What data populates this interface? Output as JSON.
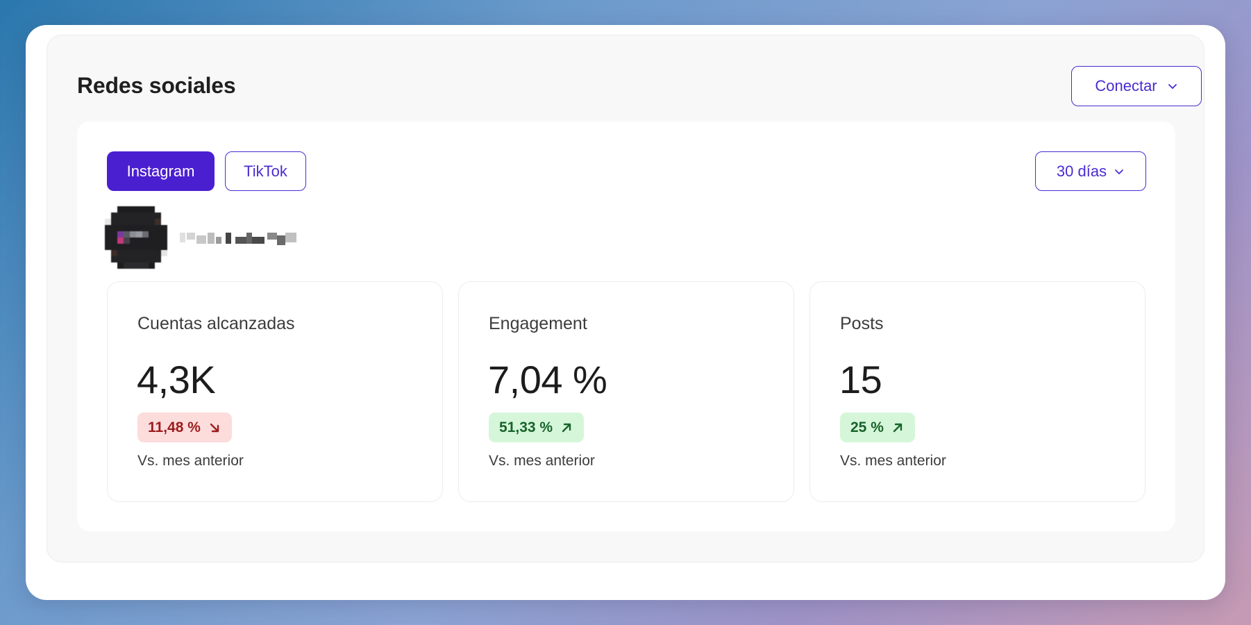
{
  "panel": {
    "title": "Redes sociales",
    "connect_label": "Conectar"
  },
  "tabs": [
    {
      "label": "Instagram",
      "active": true
    },
    {
      "label": "TikTok",
      "active": false
    }
  ],
  "range": {
    "label": "30 días"
  },
  "metrics": [
    {
      "label": "Cuentas alcanzadas",
      "value": "4,3K",
      "change": "11,48 %",
      "trend": "down",
      "comparison": "Vs. mes anterior"
    },
    {
      "label": "Engagement",
      "value": "7,04 %",
      "change": "51,33 %",
      "trend": "up",
      "comparison": "Vs. mes anterior"
    },
    {
      "label": "Posts",
      "value": "15",
      "change": "25 %",
      "trend": "up",
      "comparison": "Vs. mes anterior"
    }
  ],
  "colors": {
    "accent": "#4a1fd0",
    "down_bg": "#fddcdc",
    "down_text": "#9b1d1d",
    "up_bg": "#d6f6da",
    "up_text": "#18632a"
  },
  "icons": {
    "dropdown": "chevron-down-icon",
    "trend_down": "arrow-down-right-icon",
    "trend_up": "arrow-up-right-icon"
  }
}
